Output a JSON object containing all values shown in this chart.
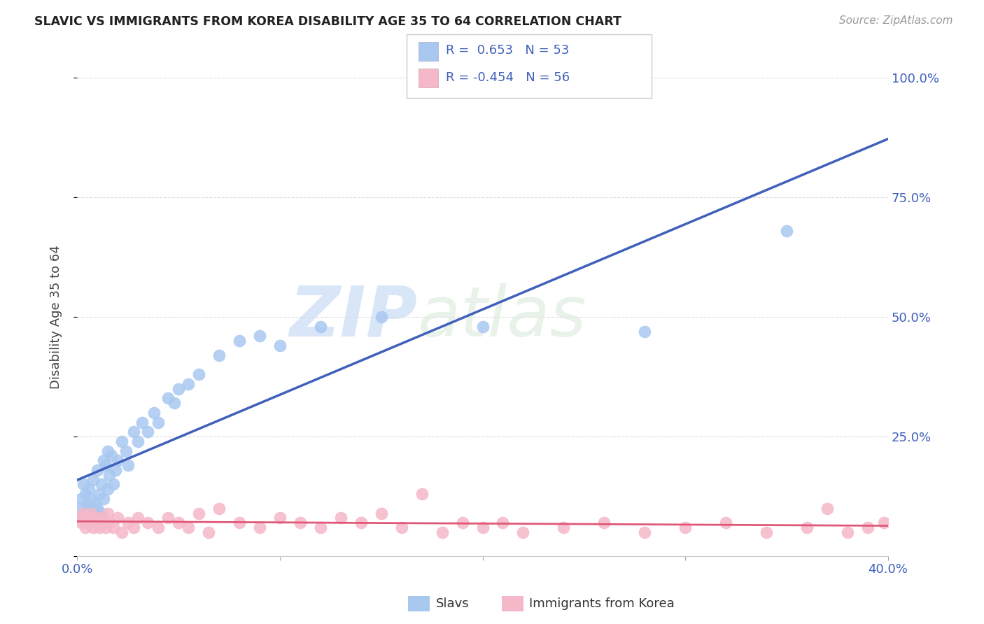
{
  "title": "SLAVIC VS IMMIGRANTS FROM KOREA DISABILITY AGE 35 TO 64 CORRELATION CHART",
  "source": "Source: ZipAtlas.com",
  "ylabel": "Disability Age 35 to 64",
  "xlim": [
    0.0,
    0.4
  ],
  "ylim": [
    0.0,
    1.0
  ],
  "slavs_R": 0.653,
  "slavs_N": 53,
  "korea_R": -0.454,
  "korea_N": 56,
  "slavs_color": "#A8C8F0",
  "korea_color": "#F5B8C8",
  "slavs_line_color": "#4060BB",
  "korea_line_color": "#E05878",
  "legend_text_color": "#4060BB",
  "slavs_x": [
    0.001,
    0.002,
    0.003,
    0.003,
    0.004,
    0.004,
    0.005,
    0.005,
    0.006,
    0.006,
    0.007,
    0.007,
    0.008,
    0.008,
    0.009,
    0.01,
    0.01,
    0.011,
    0.012,
    0.012,
    0.013,
    0.013,
    0.014,
    0.015,
    0.015,
    0.016,
    0.017,
    0.018,
    0.019,
    0.02,
    0.022,
    0.024,
    0.025,
    0.028,
    0.03,
    0.032,
    0.035,
    0.038,
    0.04,
    0.045,
    0.048,
    0.05,
    0.055,
    0.06,
    0.07,
    0.08,
    0.09,
    0.1,
    0.12,
    0.15,
    0.2,
    0.28,
    0.35
  ],
  "slavs_y": [
    0.1,
    0.12,
    0.08,
    0.15,
    0.09,
    0.13,
    0.07,
    0.11,
    0.1,
    0.14,
    0.08,
    0.12,
    0.09,
    0.16,
    0.11,
    0.1,
    0.18,
    0.13,
    0.09,
    0.15,
    0.12,
    0.2,
    0.19,
    0.14,
    0.22,
    0.17,
    0.21,
    0.15,
    0.18,
    0.2,
    0.24,
    0.22,
    0.19,
    0.26,
    0.24,
    0.28,
    0.26,
    0.3,
    0.28,
    0.33,
    0.32,
    0.35,
    0.36,
    0.38,
    0.42,
    0.45,
    0.46,
    0.44,
    0.48,
    0.5,
    0.48,
    0.47,
    0.68
  ],
  "korea_x": [
    0.001,
    0.002,
    0.003,
    0.004,
    0.005,
    0.006,
    0.007,
    0.008,
    0.009,
    0.01,
    0.011,
    0.012,
    0.013,
    0.014,
    0.015,
    0.016,
    0.018,
    0.02,
    0.022,
    0.025,
    0.028,
    0.03,
    0.035,
    0.04,
    0.045,
    0.05,
    0.055,
    0.06,
    0.065,
    0.07,
    0.08,
    0.09,
    0.1,
    0.11,
    0.12,
    0.13,
    0.14,
    0.15,
    0.16,
    0.17,
    0.18,
    0.19,
    0.2,
    0.21,
    0.22,
    0.24,
    0.26,
    0.28,
    0.3,
    0.32,
    0.34,
    0.36,
    0.37,
    0.38,
    0.39,
    0.398
  ],
  "korea_y": [
    0.08,
    0.07,
    0.09,
    0.06,
    0.08,
    0.07,
    0.09,
    0.06,
    0.08,
    0.07,
    0.06,
    0.08,
    0.07,
    0.06,
    0.09,
    0.07,
    0.06,
    0.08,
    0.05,
    0.07,
    0.06,
    0.08,
    0.07,
    0.06,
    0.08,
    0.07,
    0.06,
    0.09,
    0.05,
    0.1,
    0.07,
    0.06,
    0.08,
    0.07,
    0.06,
    0.08,
    0.07,
    0.09,
    0.06,
    0.13,
    0.05,
    0.07,
    0.06,
    0.07,
    0.05,
    0.06,
    0.07,
    0.05,
    0.06,
    0.07,
    0.05,
    0.06,
    0.1,
    0.05,
    0.06,
    0.07
  ],
  "watermark_zip": "ZIP",
  "watermark_atlas": "atlas",
  "background_color": "#FFFFFF",
  "grid_color": "#DDDDDD"
}
